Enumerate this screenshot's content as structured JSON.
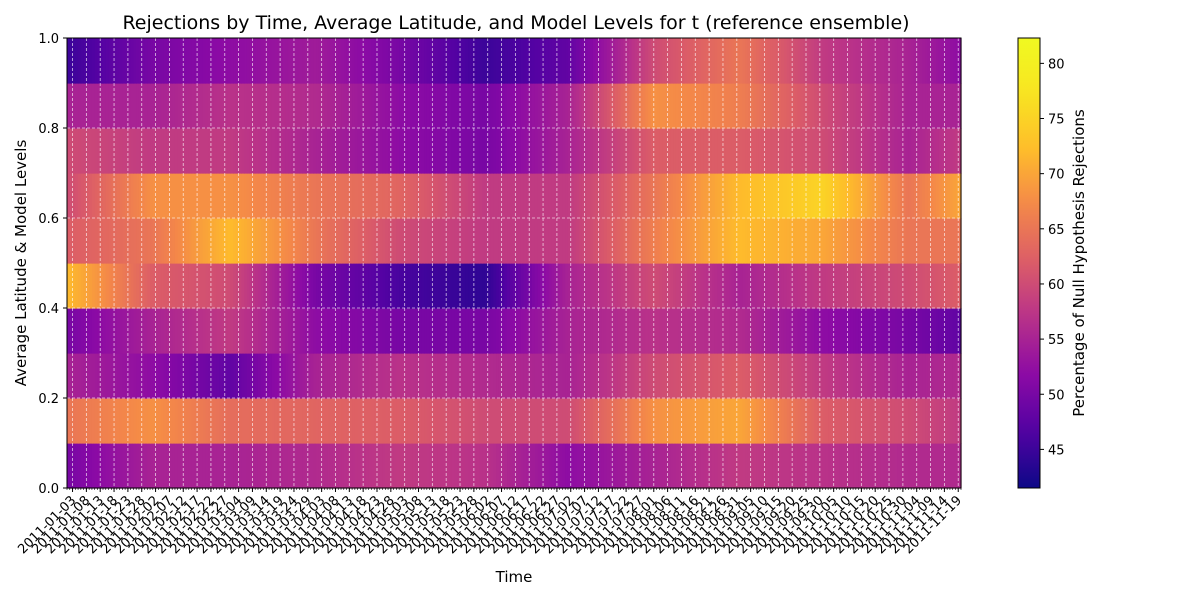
{
  "chart_data": {
    "type": "heatmap",
    "title": "Rejections by Time, Average Latitude, and Model Levels for t (reference ensemble)",
    "xlabel": "Time",
    "ylabel": "Average Latitude & Model Levels",
    "colorbar_label": "Percentage of Null Hypothesis Rejections",
    "colormap": "plasma",
    "x_start": "2011-01-01",
    "x_end": "2011-11-20",
    "x_tick_labels": [
      "2011-01-03",
      "2011-01-08",
      "2011-01-13",
      "2011-01-18",
      "2011-01-23",
      "2011-01-28",
      "2011-02-02",
      "2011-02-07",
      "2011-02-12",
      "2011-02-17",
      "2011-02-22",
      "2011-02-27",
      "2011-03-04",
      "2011-03-09",
      "2011-03-14",
      "2011-03-19",
      "2011-03-24",
      "2011-03-29",
      "2011-04-03",
      "2011-04-08",
      "2011-04-13",
      "2011-04-18",
      "2011-04-23",
      "2011-04-28",
      "2011-05-03",
      "2011-05-08",
      "2011-05-13",
      "2011-05-18",
      "2011-05-23",
      "2011-05-28",
      "2011-06-02",
      "2011-06-07",
      "2011-06-12",
      "2011-06-17",
      "2011-06-22",
      "2011-06-27",
      "2011-07-02",
      "2011-07-07",
      "2011-07-12",
      "2011-07-17",
      "2011-07-22",
      "2011-07-27",
      "2011-08-01",
      "2011-08-06",
      "2011-08-11",
      "2011-08-16",
      "2011-08-21",
      "2011-08-26",
      "2011-08-31",
      "2011-09-05",
      "2011-09-10",
      "2011-09-15",
      "2011-09-20",
      "2011-09-25",
      "2011-09-30",
      "2011-10-05",
      "2011-10-10",
      "2011-10-15",
      "2011-10-20",
      "2011-10-25",
      "2011-10-30",
      "2011-11-04",
      "2011-11-09",
      "2011-11-14",
      "2011-11-19"
    ],
    "y_ticks": [
      "0.0",
      "0.2",
      "0.4",
      "0.6",
      "0.8",
      "1.0"
    ],
    "ylim": [
      0,
      1
    ],
    "colorbar_ticks": [
      "45",
      "50",
      "55",
      "60",
      "65",
      "70",
      "75",
      "80"
    ],
    "value_range": [
      41.5,
      82.3
    ],
    "grid": true,
    "y_values": [
      0.05,
      0.15,
      0.25,
      0.35,
      0.45,
      0.55,
      0.65,
      0.75,
      0.85,
      0.95
    ],
    "x_anchor_dates": [
      "2011-01-01",
      "2011-02-01",
      "2011-03-01",
      "2011-04-01",
      "2011-05-01",
      "2011-06-01",
      "2011-07-01",
      "2011-08-01",
      "2011-09-01",
      "2011-10-01",
      "2011-11-01",
      "2011-11-20"
    ],
    "values": [
      [
        50,
        55,
        55,
        56,
        58,
        57,
        52,
        55,
        58,
        57,
        56,
        56
      ],
      [
        65,
        68,
        64,
        63,
        62,
        60,
        60,
        68,
        70,
        62,
        60,
        58
      ],
      [
        55,
        52,
        48,
        55,
        57,
        56,
        55,
        60,
        62,
        58,
        55,
        56
      ],
      [
        50,
        55,
        58,
        52,
        50,
        50,
        55,
        57,
        56,
        52,
        50,
        48
      ],
      [
        72,
        62,
        60,
        50,
        46,
        44,
        55,
        60,
        55,
        58,
        60,
        62
      ],
      [
        62,
        65,
        72,
        65,
        60,
        58,
        58,
        66,
        72,
        70,
        65,
        65
      ],
      [
        60,
        68,
        68,
        65,
        63,
        58,
        58,
        65,
        72,
        75,
        65,
        70
      ],
      [
        60,
        58,
        58,
        55,
        52,
        50,
        55,
        62,
        62,
        60,
        55,
        58
      ],
      [
        55,
        55,
        57,
        56,
        52,
        50,
        55,
        68,
        66,
        60,
        55,
        55
      ],
      [
        45,
        50,
        52,
        54,
        50,
        45,
        48,
        60,
        65,
        58,
        55,
        52
      ]
    ]
  }
}
